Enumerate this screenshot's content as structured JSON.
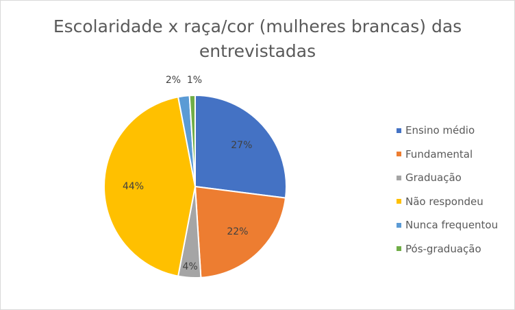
{
  "chart_data": {
    "type": "pie",
    "title_lines": [
      "Escolaridade x raça/cor (mulheres brancas) das",
      "entrevistadas"
    ],
    "legend_position": "right",
    "slices": [
      {
        "label": "Ensino médio",
        "value": 27,
        "value_label": "27%",
        "color": "#4472C4"
      },
      {
        "label": "Fundamental",
        "value": 22,
        "value_label": "22%",
        "color": "#ED7D31"
      },
      {
        "label": "Graduação",
        "value": 4,
        "value_label": "4%",
        "color": "#A5A5A5"
      },
      {
        "label": "Não respondeu",
        "value": 44,
        "value_label": "44%",
        "color": "#FFC000"
      },
      {
        "label": "Nunca frequentou",
        "value": 2,
        "value_label": "2%",
        "color": "#5B9BD5"
      },
      {
        "label": "Pós-graduação",
        "value": 1,
        "value_label": "1%",
        "color": "#70AD47"
      }
    ]
  }
}
